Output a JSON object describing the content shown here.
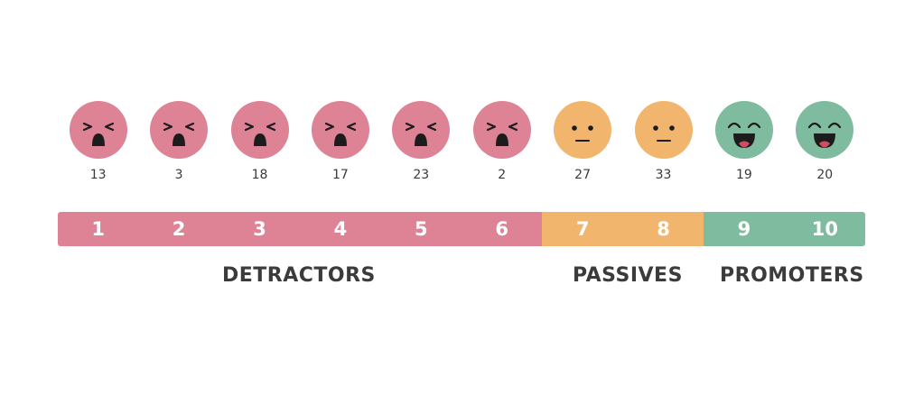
{
  "colors": {
    "detractor": "#de8295",
    "passive": "#f1b56d",
    "promoter": "#7fbb9f",
    "feature": "#1c1c1c"
  },
  "faces": [
    {
      "score": "1",
      "count": "13",
      "group": "detractor",
      "expression": "crying"
    },
    {
      "score": "2",
      "count": "3",
      "group": "detractor",
      "expression": "crying"
    },
    {
      "score": "3",
      "count": "18",
      "group": "detractor",
      "expression": "crying"
    },
    {
      "score": "4",
      "count": "17",
      "group": "detractor",
      "expression": "crying"
    },
    {
      "score": "5",
      "count": "23",
      "group": "detractor",
      "expression": "crying"
    },
    {
      "score": "6",
      "count": "2",
      "group": "detractor",
      "expression": "crying"
    },
    {
      "score": "7",
      "count": "27",
      "group": "passive",
      "expression": "neutral"
    },
    {
      "score": "8",
      "count": "33",
      "group": "passive",
      "expression": "neutral"
    },
    {
      "score": "9",
      "count": "19",
      "group": "promoter",
      "expression": "laughing"
    },
    {
      "score": "10",
      "count": "20",
      "group": "promoter",
      "expression": "laughing"
    }
  ],
  "groups": {
    "detractors": "DETRACTORS",
    "passives": "PASSIVES",
    "promoters": "PROMOTERS"
  }
}
